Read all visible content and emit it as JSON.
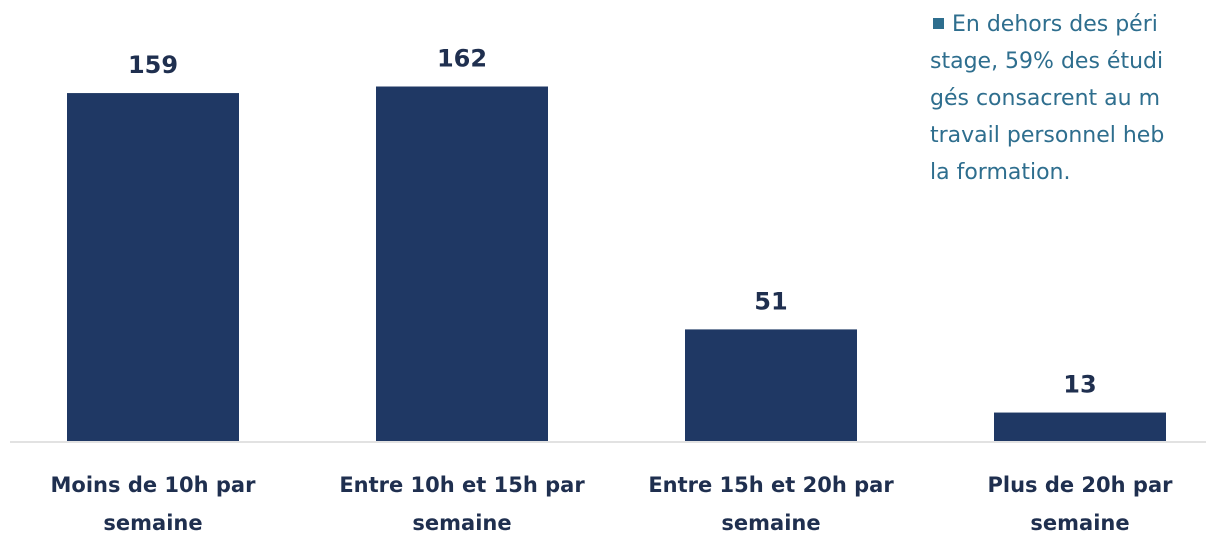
{
  "chart_data": {
    "type": "bar",
    "categories": [
      [
        "Moins de 10h par",
        "semaine"
      ],
      [
        "Entre 10h et 15h par",
        "semaine"
      ],
      [
        "Entre 15h et 20h par",
        "semaine"
      ],
      [
        "Plus de 20h par",
        "semaine"
      ]
    ],
    "values": [
      159,
      162,
      51,
      13
    ],
    "value_labels": [
      "159",
      "162",
      "51",
      "13"
    ],
    "title": "",
    "xlabel": "",
    "ylabel": "",
    "ylim": [
      0,
      170
    ],
    "grid": false,
    "legend": "none",
    "bar_color": "#1f3864",
    "label_color": "#1f2f4f"
  },
  "annotation": {
    "lines": [
      "En dehors des péri",
      "stage, 59% des étudi",
      "gés consacrent au m",
      "travail personnel heb",
      "la formation."
    ],
    "color": "#2e6e8e"
  }
}
